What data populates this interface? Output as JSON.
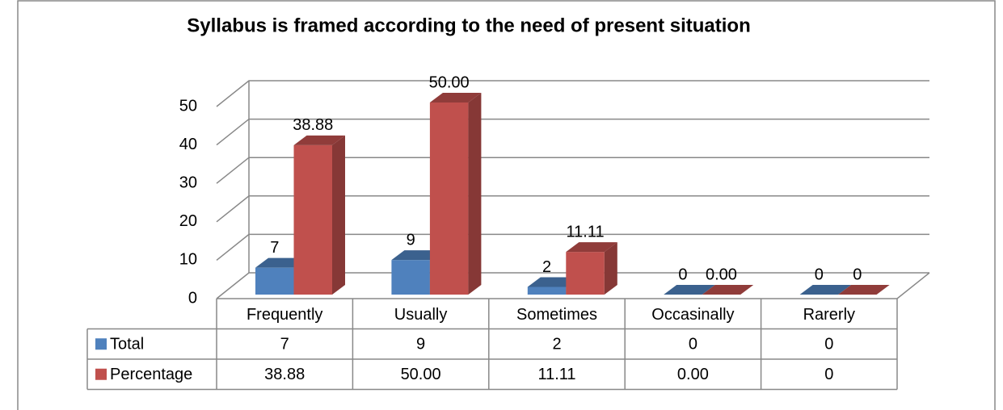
{
  "chart_data": {
    "type": "bar3d",
    "title": "Syllabus is framed according to the need of present situation",
    "categories": [
      "Frequently",
      "Usually",
      "Sometimes",
      "Occasinally",
      "Rarerly"
    ],
    "series": [
      {
        "name": "Total",
        "color": "#4f81bd",
        "values": [
          7,
          9,
          2,
          0,
          0
        ]
      },
      {
        "name": "Percentage",
        "color": "#c0504d",
        "values": [
          38.88,
          50,
          11.11,
          0,
          0
        ],
        "value_labels": [
          "38.88",
          "50.00",
          "11.11",
          "0.00",
          "0"
        ]
      }
    ],
    "ylim": [
      0,
      50
    ],
    "yticks": [
      0,
      10,
      20,
      30,
      40,
      50
    ],
    "grid": true,
    "data_table": true
  }
}
